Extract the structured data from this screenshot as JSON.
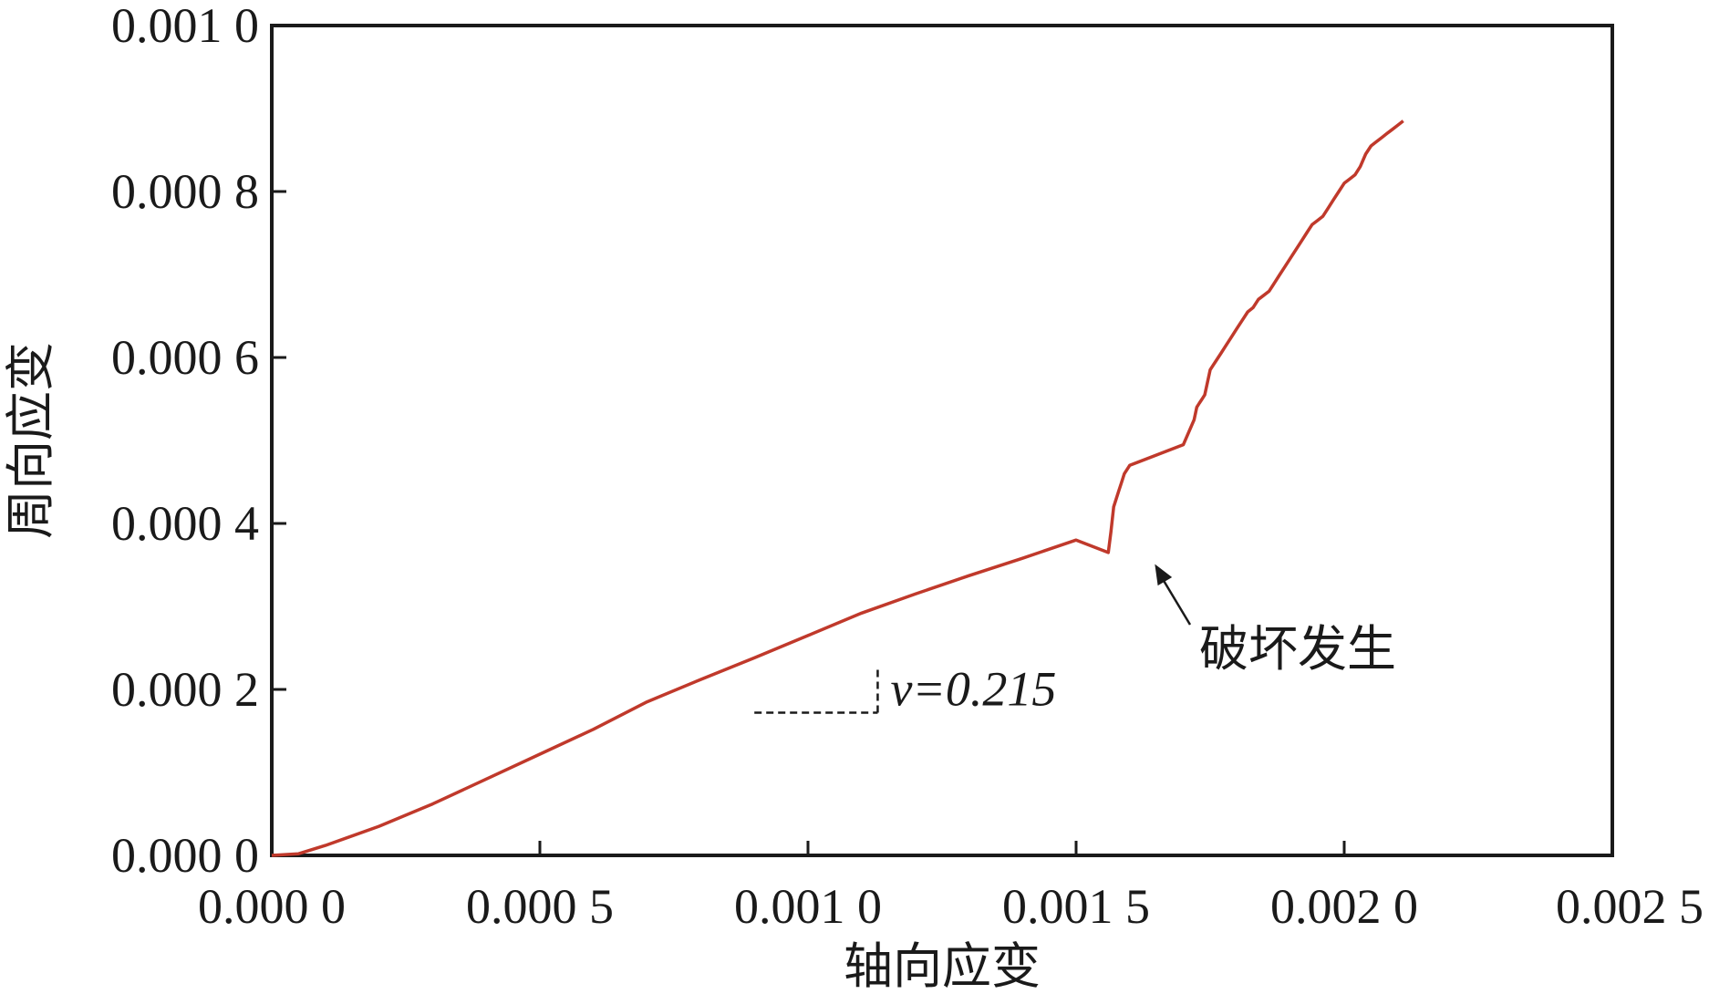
{
  "chart_data": {
    "type": "line",
    "xlabel": "轴向应变",
    "ylabel": "周向应变",
    "xlim": [
      0,
      0.0025
    ],
    "ylim": [
      0,
      0.001
    ],
    "xticks": [
      0,
      0.0005,
      0.001,
      0.0015,
      0.002,
      0.0025
    ],
    "xtick_labels": [
      "0.000 0",
      "0.000 5",
      "0.001 0",
      "0.001 5",
      "0.002 0",
      "0.002 5"
    ],
    "yticks": [
      0,
      0.0002,
      0.0004,
      0.0006,
      0.0008,
      0.001
    ],
    "ytick_labels": [
      "0.000 0",
      "0.000 2",
      "0.000 4",
      "0.000 6",
      "0.000 8",
      "0.001 0"
    ],
    "grid": false,
    "line_color": "#c0392b",
    "series": [
      {
        "x": [
          0,
          5e-05,
          0.0001,
          0.0002,
          0.0003,
          0.0004,
          0.0005,
          0.0006,
          0.0007,
          0.0008,
          0.0009,
          0.001,
          0.0011,
          0.0012,
          0.0013,
          0.0014,
          0.0015,
          0.00156,
          0.001565,
          0.00157,
          0.001575,
          0.00158,
          0.001585,
          0.00159,
          0.0016,
          0.0017,
          0.00172,
          0.001725,
          0.00173,
          0.001735,
          0.00174,
          0.00175,
          0.001755,
          0.00176,
          0.00177,
          0.00178,
          0.00179,
          0.0018,
          0.00181,
          0.00182,
          0.00183,
          0.00184,
          0.00185,
          0.00186,
          0.00187,
          0.00188,
          0.00189,
          0.0019,
          0.00191,
          0.00192,
          0.00193,
          0.00194,
          0.00195,
          0.00196,
          0.00197,
          0.00198,
          0.00199,
          0.002,
          0.00201,
          0.00202,
          0.00203,
          0.00204,
          0.00205,
          0.00206,
          0.00207,
          0.00208,
          0.00209,
          0.0021,
          0.00211
        ],
        "y": [
          0,
          2e-06,
          1.2e-05,
          3.5e-05,
          6.2e-05,
          9.2e-05,
          0.000122,
          0.000152,
          0.000185,
          0.000212,
          0.000238,
          0.000265,
          0.000292,
          0.000315,
          0.000337,
          0.000358,
          0.00038,
          0.000365,
          0.00039,
          0.00042,
          0.00043,
          0.00044,
          0.00045,
          0.00046,
          0.00047,
          0.000495,
          0.000525,
          0.00054,
          0.000545,
          0.00055,
          0.000555,
          0.000585,
          0.00059,
          0.000595,
          0.000605,
          0.000615,
          0.000625,
          0.000635,
          0.000645,
          0.000655,
          0.00066,
          0.00067,
          0.000675,
          0.00068,
          0.00069,
          0.0007,
          0.00071,
          0.00072,
          0.00073,
          0.00074,
          0.00075,
          0.00076,
          0.000765,
          0.00077,
          0.00078,
          0.00079,
          0.0008,
          0.00081,
          0.000815,
          0.00082,
          0.00083,
          0.000845,
          0.000855,
          0.00086,
          0.000865,
          0.00087,
          0.000875,
          0.00088,
          0.000885
        ]
      }
    ],
    "annotations": [
      {
        "text": "破坏发生",
        "arrow_to": [
          0.00164,
          0.000362
        ]
      },
      {
        "text": "ν=0.215",
        "slope_triangle": {
          "x0": 0.0009,
          "x1": 0.00113,
          "y0": 0.000172,
          "y1": 0.000227
        }
      }
    ]
  }
}
